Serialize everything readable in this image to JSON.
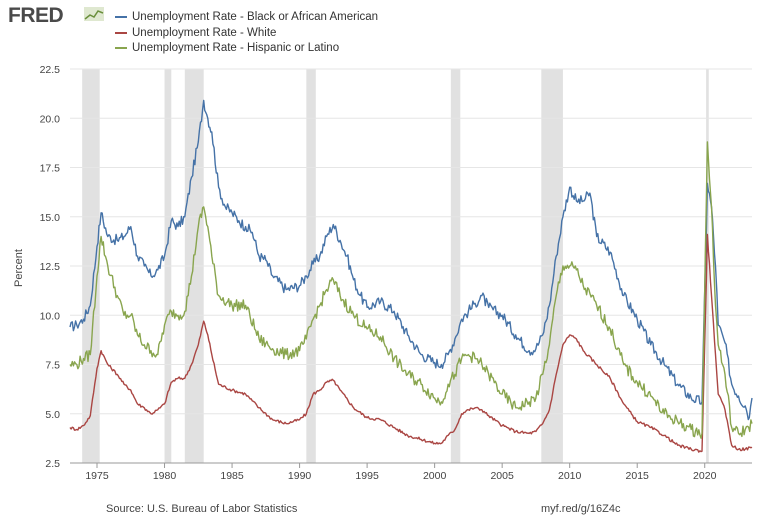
{
  "header": {
    "logo_text": "FRED"
  },
  "footer": {
    "source": "Source: U.S. Bureau of Labor Statistics",
    "link": "myf.red/g/16Z4c"
  },
  "chart_data": {
    "type": "line",
    "title": "",
    "xlabel": "",
    "ylabel": "Percent",
    "xlim": [
      1973,
      2023.5
    ],
    "ylim": [
      2.5,
      22.5
    ],
    "yticks": [
      "2.5",
      "5.0",
      "7.5",
      "10.0",
      "12.5",
      "15.0",
      "17.5",
      "20.0",
      "22.5"
    ],
    "xticks": [
      "1975",
      "1980",
      "1985",
      "1990",
      "1995",
      "2000",
      "2005",
      "2010",
      "2015",
      "2020"
    ],
    "recessions": [
      [
        1973.9,
        1975.2
      ],
      [
        1980.0,
        1980.5
      ],
      [
        1981.5,
        1982.9
      ],
      [
        1990.5,
        1991.2
      ],
      [
        2001.2,
        2001.9
      ],
      [
        2007.9,
        2009.5
      ],
      [
        2020.1,
        2020.3
      ]
    ],
    "series": [
      {
        "name": "Unemployment Rate - Black or African American",
        "color": "#4572a7",
        "points": [
          [
            1973.0,
            9.4
          ],
          [
            1973.5,
            9.5
          ],
          [
            1974.0,
            9.8
          ],
          [
            1974.5,
            10.5
          ],
          [
            1975.0,
            13.5
          ],
          [
            1975.3,
            15.2
          ],
          [
            1975.8,
            14.0
          ],
          [
            1976.5,
            13.8
          ],
          [
            1977.0,
            14.0
          ],
          [
            1977.5,
            14.5
          ],
          [
            1978.0,
            13.0
          ],
          [
            1978.5,
            12.5
          ],
          [
            1979.0,
            12.0
          ],
          [
            1979.5,
            12.3
          ],
          [
            1980.0,
            13.0
          ],
          [
            1980.5,
            14.8
          ],
          [
            1981.0,
            14.5
          ],
          [
            1981.5,
            15.0
          ],
          [
            1982.0,
            17.0
          ],
          [
            1982.5,
            18.8
          ],
          [
            1982.9,
            20.9
          ],
          [
            1983.2,
            20.0
          ],
          [
            1983.5,
            19.3
          ],
          [
            1984.0,
            16.5
          ],
          [
            1984.5,
            15.5
          ],
          [
            1985.0,
            15.2
          ],
          [
            1985.5,
            14.8
          ],
          [
            1986.0,
            14.5
          ],
          [
            1986.5,
            14.2
          ],
          [
            1987.0,
            13.0
          ],
          [
            1987.5,
            12.8
          ],
          [
            1988.0,
            12.0
          ],
          [
            1989.0,
            11.3
          ],
          [
            1990.0,
            11.5
          ],
          [
            1990.5,
            12.0
          ],
          [
            1991.0,
            12.6
          ],
          [
            1991.5,
            13.0
          ],
          [
            1992.0,
            14.0
          ],
          [
            1992.5,
            14.6
          ],
          [
            1993.0,
            13.8
          ],
          [
            1993.5,
            13.0
          ],
          [
            1994.0,
            11.8
          ],
          [
            1994.5,
            11.0
          ],
          [
            1995.0,
            10.4
          ],
          [
            1996.0,
            10.7
          ],
          [
            1997.0,
            10.2
          ],
          [
            1998.0,
            9.0
          ],
          [
            1999.0,
            8.0
          ],
          [
            2000.0,
            7.6
          ],
          [
            2000.5,
            7.5
          ],
          [
            2001.0,
            8.0
          ],
          [
            2001.5,
            8.8
          ],
          [
            2002.0,
            9.8
          ],
          [
            2002.5,
            10.2
          ],
          [
            2003.0,
            10.6
          ],
          [
            2003.5,
            11.0
          ],
          [
            2004.0,
            10.4
          ],
          [
            2005.0,
            10.0
          ],
          [
            2006.0,
            9.0
          ],
          [
            2007.0,
            8.2
          ],
          [
            2007.5,
            8.3
          ],
          [
            2008.0,
            9.0
          ],
          [
            2008.5,
            10.5
          ],
          [
            2009.0,
            13.0
          ],
          [
            2009.5,
            15.0
          ],
          [
            2010.0,
            16.5
          ],
          [
            2010.5,
            15.8
          ],
          [
            2011.0,
            15.8
          ],
          [
            2011.5,
            16.2
          ],
          [
            2012.0,
            14.0
          ],
          [
            2013.0,
            13.2
          ],
          [
            2014.0,
            11.0
          ],
          [
            2015.0,
            9.8
          ],
          [
            2016.0,
            8.5
          ],
          [
            2017.0,
            7.5
          ],
          [
            2018.0,
            6.5
          ],
          [
            2019.0,
            5.8
          ],
          [
            2019.8,
            5.6
          ],
          [
            2020.2,
            16.7
          ],
          [
            2020.5,
            15.5
          ],
          [
            2020.8,
            12.5
          ],
          [
            2021.0,
            9.5
          ],
          [
            2021.5,
            8.6
          ],
          [
            2022.0,
            6.5
          ],
          [
            2022.5,
            5.9
          ],
          [
            2023.0,
            5.4
          ],
          [
            2023.3,
            4.8
          ],
          [
            2023.5,
            5.8
          ]
        ]
      },
      {
        "name": "Unemployment Rate - White",
        "color": "#aa4643",
        "points": [
          [
            1973.0,
            4.3
          ],
          [
            1973.5,
            4.2
          ],
          [
            1974.0,
            4.4
          ],
          [
            1974.5,
            4.9
          ],
          [
            1975.0,
            7.3
          ],
          [
            1975.3,
            8.2
          ],
          [
            1975.8,
            7.5
          ],
          [
            1976.5,
            7.0
          ],
          [
            1977.0,
            6.5
          ],
          [
            1977.5,
            6.2
          ],
          [
            1978.0,
            5.5
          ],
          [
            1978.5,
            5.3
          ],
          [
            1979.0,
            5.0
          ],
          [
            1979.5,
            5.2
          ],
          [
            1980.0,
            5.5
          ],
          [
            1980.5,
            6.6
          ],
          [
            1981.0,
            6.8
          ],
          [
            1981.5,
            6.8
          ],
          [
            1982.0,
            7.5
          ],
          [
            1982.5,
            8.5
          ],
          [
            1982.9,
            9.7
          ],
          [
            1983.2,
            9.0
          ],
          [
            1983.5,
            8.0
          ],
          [
            1984.0,
            6.5
          ],
          [
            1985.0,
            6.2
          ],
          [
            1986.0,
            6.0
          ],
          [
            1987.0,
            5.3
          ],
          [
            1988.0,
            4.7
          ],
          [
            1989.0,
            4.5
          ],
          [
            1990.0,
            4.7
          ],
          [
            1990.5,
            5.0
          ],
          [
            1991.0,
            6.0
          ],
          [
            1991.5,
            6.2
          ],
          [
            1992.0,
            6.6
          ],
          [
            1992.5,
            6.7
          ],
          [
            1993.0,
            6.2
          ],
          [
            1994.0,
            5.3
          ],
          [
            1995.0,
            4.8
          ],
          [
            1996.0,
            4.7
          ],
          [
            1997.0,
            4.3
          ],
          [
            1998.0,
            3.9
          ],
          [
            1999.0,
            3.7
          ],
          [
            2000.0,
            3.5
          ],
          [
            2000.5,
            3.5
          ],
          [
            2001.0,
            3.9
          ],
          [
            2001.5,
            4.2
          ],
          [
            2002.0,
            5.0
          ],
          [
            2002.5,
            5.2
          ],
          [
            2003.0,
            5.3
          ],
          [
            2003.5,
            5.2
          ],
          [
            2004.0,
            4.9
          ],
          [
            2005.0,
            4.4
          ],
          [
            2006.0,
            4.1
          ],
          [
            2007.0,
            4.0
          ],
          [
            2007.5,
            4.1
          ],
          [
            2008.0,
            4.5
          ],
          [
            2008.5,
            5.2
          ],
          [
            2009.0,
            7.0
          ],
          [
            2009.5,
            8.5
          ],
          [
            2010.0,
            9.0
          ],
          [
            2010.5,
            8.8
          ],
          [
            2011.0,
            8.2
          ],
          [
            2012.0,
            7.5
          ],
          [
            2013.0,
            6.8
          ],
          [
            2014.0,
            5.5
          ],
          [
            2015.0,
            4.6
          ],
          [
            2016.0,
            4.3
          ],
          [
            2017.0,
            3.9
          ],
          [
            2018.0,
            3.4
          ],
          [
            2019.0,
            3.2
          ],
          [
            2019.8,
            3.1
          ],
          [
            2020.2,
            14.1
          ],
          [
            2020.5,
            11.0
          ],
          [
            2020.8,
            8.0
          ],
          [
            2021.0,
            6.0
          ],
          [
            2021.5,
            5.2
          ],
          [
            2022.0,
            3.4
          ],
          [
            2022.5,
            3.2
          ],
          [
            2023.0,
            3.2
          ],
          [
            2023.5,
            3.3
          ]
        ]
      },
      {
        "name": "Unemployment Rate - Hispanic or Latino",
        "color": "#89a54e",
        "points": [
          [
            1973.0,
            7.5
          ],
          [
            1973.5,
            7.5
          ],
          [
            1974.0,
            7.8
          ],
          [
            1974.5,
            8.0
          ],
          [
            1975.0,
            12.0
          ],
          [
            1975.3,
            14.0
          ],
          [
            1975.8,
            12.5
          ],
          [
            1976.5,
            11.0
          ],
          [
            1977.0,
            10.0
          ],
          [
            1977.5,
            10.0
          ],
          [
            1978.0,
            9.0
          ],
          [
            1978.5,
            8.5
          ],
          [
            1979.0,
            8.2
          ],
          [
            1979.5,
            8.0
          ],
          [
            1980.0,
            9.5
          ],
          [
            1980.5,
            10.2
          ],
          [
            1981.0,
            10.0
          ],
          [
            1981.5,
            10.2
          ],
          [
            1982.0,
            12.0
          ],
          [
            1982.5,
            14.5
          ],
          [
            1982.9,
            15.5
          ],
          [
            1983.2,
            14.5
          ],
          [
            1983.5,
            13.0
          ],
          [
            1984.0,
            11.0
          ],
          [
            1985.0,
            10.5
          ],
          [
            1986.0,
            10.5
          ],
          [
            1987.0,
            8.8
          ],
          [
            1988.0,
            8.3
          ],
          [
            1989.0,
            8.0
          ],
          [
            1990.0,
            8.2
          ],
          [
            1990.5,
            8.8
          ],
          [
            1991.0,
            9.8
          ],
          [
            1991.5,
            10.5
          ],
          [
            1992.0,
            11.3
          ],
          [
            1992.5,
            11.8
          ],
          [
            1993.0,
            11.0
          ],
          [
            1994.0,
            10.0
          ],
          [
            1995.0,
            9.3
          ],
          [
            1996.0,
            8.9
          ],
          [
            1997.0,
            7.8
          ],
          [
            1998.0,
            7.0
          ],
          [
            1999.0,
            6.5
          ],
          [
            2000.0,
            5.8
          ],
          [
            2000.5,
            5.6
          ],
          [
            2001.0,
            6.5
          ],
          [
            2001.5,
            7.0
          ],
          [
            2002.0,
            7.8
          ],
          [
            2002.5,
            8.0
          ],
          [
            2003.0,
            7.8
          ],
          [
            2003.5,
            7.5
          ],
          [
            2004.0,
            7.0
          ],
          [
            2005.0,
            6.0
          ],
          [
            2006.0,
            5.3
          ],
          [
            2007.0,
            5.6
          ],
          [
            2007.5,
            5.8
          ],
          [
            2008.0,
            7.0
          ],
          [
            2008.5,
            8.5
          ],
          [
            2009.0,
            11.0
          ],
          [
            2009.5,
            12.5
          ],
          [
            2010.0,
            12.5
          ],
          [
            2010.5,
            12.3
          ],
          [
            2011.0,
            11.5
          ],
          [
            2012.0,
            10.5
          ],
          [
            2013.0,
            9.3
          ],
          [
            2014.0,
            7.5
          ],
          [
            2015.0,
            6.6
          ],
          [
            2016.0,
            5.9
          ],
          [
            2017.0,
            5.0
          ],
          [
            2018.0,
            4.6
          ],
          [
            2019.0,
            4.2
          ],
          [
            2019.8,
            4.0
          ],
          [
            2020.2,
            18.8
          ],
          [
            2020.5,
            15.5
          ],
          [
            2020.8,
            10.5
          ],
          [
            2021.0,
            8.5
          ],
          [
            2021.5,
            7.0
          ],
          [
            2022.0,
            4.3
          ],
          [
            2022.5,
            4.0
          ],
          [
            2023.0,
            4.2
          ],
          [
            2023.5,
            4.5
          ]
        ]
      }
    ]
  }
}
